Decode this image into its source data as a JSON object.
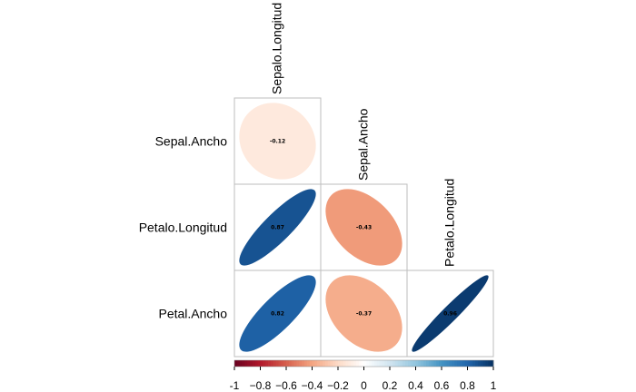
{
  "chart_data": {
    "type": "heatmap",
    "variables": [
      "Sepalo.Longitud",
      "Sepal.Ancho",
      "Petalo.Longitud",
      "Petal.Ancho"
    ],
    "column_labels": [
      "Sepalo.Longitud",
      "Sepal.Ancho",
      "Petalo.Longitud"
    ],
    "row_labels": [
      "Sepal.Ancho",
      "Petalo.Longitud",
      "Petal.Ancho"
    ],
    "cells": [
      {
        "row": "Sepal.Ancho",
        "col": "Sepalo.Longitud",
        "value": -0.12,
        "label": "-0.12"
      },
      {
        "row": "Petalo.Longitud",
        "col": "Sepalo.Longitud",
        "value": 0.87,
        "label": "0.87"
      },
      {
        "row": "Petalo.Longitud",
        "col": "Sepal.Ancho",
        "value": -0.43,
        "label": "-0.43"
      },
      {
        "row": "Petal.Ancho",
        "col": "Sepalo.Longitud",
        "value": 0.82,
        "label": "0.82"
      },
      {
        "row": "Petal.Ancho",
        "col": "Sepal.Ancho",
        "value": -0.37,
        "label": "-0.37"
      },
      {
        "row": "Petal.Ancho",
        "col": "Petalo.Longitud",
        "value": 0.96,
        "label": "0.96"
      }
    ],
    "colorbar": {
      "range": [
        -1,
        1
      ],
      "ticks": [
        "-1",
        "−0.8",
        "−0.6",
        "−0.4",
        "−0.2",
        "0",
        "0.2",
        "0.4",
        "0.6",
        "0.8",
        "1"
      ],
      "colors": [
        "#67001f",
        "#b2182b",
        "#d6604d",
        "#f4a582",
        "#fddbc7",
        "#ffffff",
        "#d1e5f0",
        "#92c5de",
        "#4393c3",
        "#2166ac",
        "#053061"
      ]
    },
    "method": "ellipse",
    "layout": "lower",
    "grid": true,
    "legend_position": "bottom"
  }
}
